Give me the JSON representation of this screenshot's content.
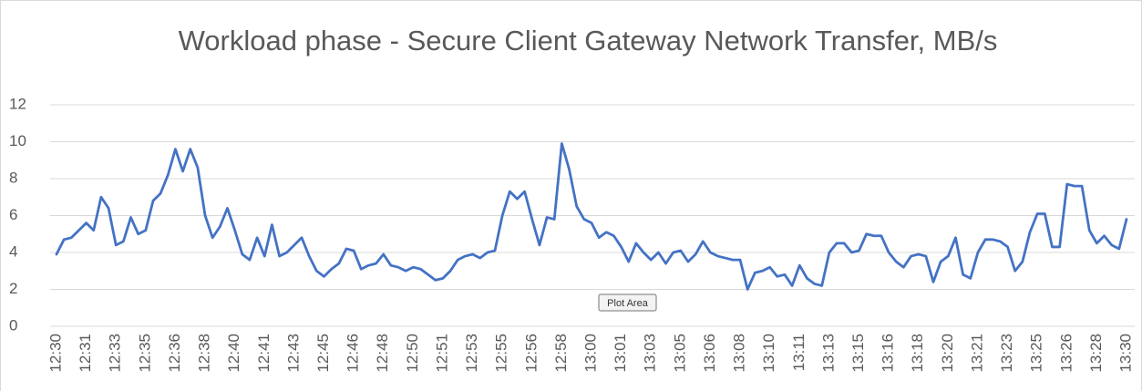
{
  "chart_data": {
    "type": "line",
    "title": "Workload phase - Secure Client Gateway Network Transfer, MB/s",
    "tooltip": "Plot Area",
    "categories": [
      "12:30",
      null,
      null,
      null,
      "12:31",
      null,
      null,
      null,
      "12:33",
      null,
      null,
      null,
      "12:35",
      null,
      null,
      null,
      "12:36",
      null,
      null,
      null,
      "12:38",
      null,
      null,
      null,
      "12:40",
      null,
      null,
      null,
      "12:41",
      null,
      null,
      null,
      "12:43",
      null,
      null,
      null,
      "12:45",
      null,
      null,
      null,
      "12:46",
      null,
      null,
      null,
      "12:48",
      null,
      null,
      null,
      "12:50",
      null,
      null,
      null,
      "12:51",
      null,
      null,
      null,
      "12:53",
      null,
      null,
      null,
      "12:55",
      null,
      null,
      null,
      "12:56",
      null,
      null,
      null,
      "12:58",
      null,
      null,
      null,
      "13:00",
      null,
      null,
      null,
      "13:01",
      null,
      null,
      null,
      "13:03",
      null,
      null,
      null,
      "13:05",
      null,
      null,
      null,
      "13:06",
      null,
      null,
      null,
      "13:08",
      null,
      null,
      null,
      "13:10",
      null,
      null,
      null,
      "13:11",
      null,
      null,
      null,
      "13:13",
      null,
      null,
      null,
      "13:15",
      null,
      null,
      null,
      "13:16",
      null,
      null,
      null,
      "13:18",
      null,
      null,
      null,
      "13:20",
      null,
      null,
      null,
      "13:21",
      null,
      null,
      null,
      "13:23",
      null,
      null,
      null,
      "13:25",
      null,
      null,
      null,
      "13:26",
      null,
      null,
      null,
      "13:28",
      null,
      null,
      null,
      "13:30"
    ],
    "values": [
      3.9,
      4.7,
      4.8,
      5.2,
      5.6,
      5.2,
      7.0,
      6.4,
      4.4,
      4.6,
      5.9,
      5.0,
      5.2,
      6.8,
      7.2,
      8.2,
      9.6,
      8.4,
      9.6,
      8.6,
      6.0,
      4.8,
      5.4,
      6.4,
      5.2,
      3.9,
      3.6,
      4.8,
      3.8,
      5.5,
      3.8,
      4.0,
      4.4,
      4.8,
      3.8,
      3.0,
      2.7,
      3.1,
      3.4,
      4.2,
      4.1,
      3.1,
      3.3,
      3.4,
      3.9,
      3.3,
      3.2,
      3.0,
      3.2,
      3.1,
      2.8,
      2.5,
      2.6,
      3.0,
      3.6,
      3.8,
      3.9,
      3.7,
      4.0,
      4.1,
      6.0,
      7.3,
      6.9,
      7.3,
      5.8,
      4.4,
      5.9,
      5.8,
      9.9,
      8.5,
      6.5,
      5.8,
      5.6,
      4.8,
      5.1,
      4.9,
      4.3,
      3.5,
      4.5,
      4.0,
      3.6,
      4.0,
      3.4,
      4.0,
      4.1,
      3.5,
      3.9,
      4.6,
      4.0,
      3.8,
      3.7,
      3.6,
      3.6,
      2.0,
      2.9,
      3.0,
      3.2,
      2.7,
      2.8,
      2.2,
      3.3,
      2.6,
      2.3,
      2.2,
      4.0,
      4.5,
      4.5,
      4.0,
      4.1,
      5.0,
      4.9,
      4.9,
      4.0,
      3.5,
      3.2,
      3.8,
      3.9,
      3.8,
      2.4,
      3.5,
      3.8,
      4.8,
      2.8,
      2.6,
      4.0,
      4.7,
      4.7,
      4.6,
      4.3,
      3.0,
      3.5,
      5.1,
      6.1,
      6.1,
      4.3,
      4.3,
      7.7,
      7.6,
      7.6,
      5.2,
      4.5,
      4.9,
      4.4,
      4.2,
      5.8
    ],
    "color": "#4472c4",
    "ylim": [
      0,
      12
    ],
    "yticks": [
      0,
      2,
      4,
      6,
      8,
      10,
      12
    ],
    "grid": true
  }
}
